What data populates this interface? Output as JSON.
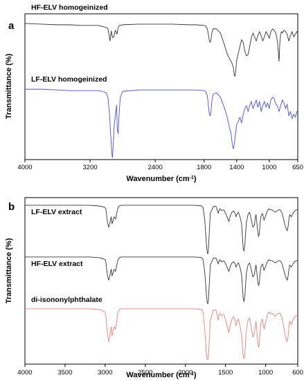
{
  "chart_data": [
    {
      "panel": "a",
      "type": "line",
      "xlabel": "Wavenumber (cm",
      "xlabel_sup": "-1",
      "xlabel_end": ")",
      "ylabel": "Transmittance (%)",
      "xlim": [
        4000,
        650
      ],
      "xticks": [
        "4000",
        "3200",
        "2400",
        "1800",
        "1400",
        "1000",
        "650"
      ],
      "series": [
        {
          "name": "HF-ELV homogeinized",
          "color": "#333333",
          "x": [
            4000,
            3800,
            3600,
            3450,
            3300,
            3100,
            3000,
            2980,
            2955,
            2940,
            2925,
            2910,
            2890,
            2870,
            2855,
            2840,
            2800,
            2600,
            2400,
            2200,
            2000,
            1900,
            1800,
            1780,
            1760,
            1745,
            1735,
            1725,
            1715,
            1705,
            1690,
            1650,
            1600,
            1560,
            1520,
            1480,
            1460,
            1440,
            1430,
            1420,
            1410,
            1400,
            1380,
            1360,
            1340,
            1320,
            1300,
            1280,
            1260,
            1240,
            1220,
            1200,
            1180,
            1160,
            1140,
            1120,
            1100,
            1080,
            1060,
            1040,
            1020,
            1000,
            980,
            960,
            940,
            920,
            900,
            880,
            870,
            860,
            850,
            840,
            820,
            800,
            780,
            760,
            740,
            720,
            700,
            680,
            660,
            650
          ],
          "y": [
            96,
            95,
            94,
            94,
            93,
            93,
            90,
            88,
            70,
            85,
            75,
            76,
            86,
            80,
            90,
            93,
            94,
            95,
            95,
            95,
            94,
            94,
            93,
            92,
            88,
            78,
            70,
            68,
            72,
            82,
            88,
            88,
            82,
            68,
            52,
            42,
            38,
            30,
            20,
            18,
            28,
            42,
            52,
            62,
            72,
            68,
            55,
            48,
            50,
            62,
            75,
            82,
            76,
            70,
            78,
            84,
            78,
            70,
            76,
            84,
            80,
            74,
            84,
            88,
            86,
            82,
            70,
            40,
            68,
            80,
            84,
            82,
            86,
            84,
            80,
            70,
            78,
            84,
            76,
            80,
            84,
            82
          ]
        },
        {
          "name": "LF-ELV homogeinized",
          "color": "#4b4bdb",
          "x": [
            4000,
            3800,
            3600,
            3450,
            3300,
            3100,
            3050,
            3000,
            2980,
            2960,
            2950,
            2940,
            2930,
            2925,
            2915,
            2905,
            2890,
            2875,
            2865,
            2855,
            2845,
            2830,
            2800,
            2600,
            2400,
            2200,
            2000,
            1900,
            1800,
            1780,
            1760,
            1745,
            1735,
            1725,
            1715,
            1705,
            1690,
            1650,
            1600,
            1560,
            1520,
            1490,
            1470,
            1460,
            1450,
            1440,
            1430,
            1420,
            1400,
            1380,
            1360,
            1340,
            1320,
            1300,
            1280,
            1260,
            1240,
            1220,
            1200,
            1180,
            1160,
            1140,
            1120,
            1100,
            1080,
            1060,
            1040,
            1020,
            1000,
            980,
            960,
            940,
            920,
            900,
            880,
            860,
            840,
            820,
            800,
            780,
            760,
            740,
            720,
            700,
            680,
            660,
            650
          ],
          "y": [
            97,
            97,
            96,
            95,
            95,
            95,
            94,
            92,
            85,
            60,
            40,
            20,
            5,
            2,
            20,
            45,
            60,
            75,
            40,
            35,
            60,
            85,
            94,
            96,
            96,
            96,
            96,
            96,
            95,
            94,
            88,
            72,
            62,
            60,
            66,
            80,
            90,
            92,
            86,
            74,
            60,
            44,
            36,
            26,
            18,
            14,
            20,
            30,
            48,
            52,
            58,
            50,
            62,
            70,
            74,
            66,
            74,
            80,
            70,
            76,
            82,
            72,
            80,
            66,
            74,
            80,
            72,
            78,
            70,
            82,
            86,
            84,
            76,
            74,
            66,
            74,
            82,
            78,
            70,
            76,
            60,
            66,
            56,
            62,
            58,
            66,
            64
          ]
        }
      ]
    },
    {
      "panel": "b",
      "type": "line",
      "xlabel": "Wavenumber (cm",
      "xlabel_sup": "-1",
      "xlabel_end": ")",
      "ylabel": "Transmittance (%)",
      "xlim": [
        4000,
        600
      ],
      "xticks": [
        "4000",
        "3500",
        "3000",
        "2500",
        "2000",
        "1500",
        "1000",
        "600"
      ],
      "series": [
        {
          "name": "LF-ELV extract",
          "color": "#333333",
          "x": [
            4000,
            3800,
            3600,
            3400,
            3200,
            3100,
            3050,
            3000,
            2990,
            2980,
            2970,
            2960,
            2955,
            2945,
            2935,
            2925,
            2915,
            2905,
            2890,
            2880,
            2870,
            2860,
            2850,
            2840,
            2820,
            2800,
            2600,
            2400,
            2200,
            2000,
            1900,
            1800,
            1780,
            1760,
            1740,
            1730,
            1722,
            1715,
            1705,
            1690,
            1650,
            1620,
            1600,
            1590,
            1580,
            1570,
            1550,
            1520,
            1480,
            1470,
            1460,
            1450,
            1440,
            1420,
            1400,
            1380,
            1370,
            1360,
            1340,
            1320,
            1300,
            1290,
            1280,
            1270,
            1260,
            1250,
            1240,
            1220,
            1200,
            1180,
            1160,
            1140,
            1130,
            1120,
            1100,
            1090,
            1080,
            1070,
            1060,
            1040,
            1020,
            1000,
            980,
            960,
            940,
            920,
            900,
            880,
            860,
            840,
            820,
            800,
            780,
            760,
            740,
            730,
            720,
            710,
            700,
            680,
            660,
            640,
            620,
            600
          ],
          "y": [
            94,
            94,
            94,
            94,
            94,
            93,
            92,
            90,
            86,
            74,
            64,
            58,
            56,
            62,
            68,
            74,
            62,
            66,
            74,
            72,
            70,
            78,
            84,
            90,
            93,
            94,
            94,
            94,
            94,
            94,
            94,
            93,
            90,
            70,
            30,
            15,
            10,
            15,
            40,
            80,
            92,
            92,
            84,
            80,
            86,
            88,
            85,
            86,
            74,
            70,
            66,
            70,
            76,
            82,
            84,
            80,
            74,
            78,
            82,
            74,
            62,
            40,
            20,
            15,
            25,
            45,
            65,
            78,
            82,
            70,
            56,
            60,
            72,
            78,
            50,
            40,
            44,
            62,
            74,
            80,
            68,
            76,
            84,
            88,
            86,
            86,
            84,
            82,
            84,
            86,
            86,
            82,
            72,
            60,
            52,
            50,
            58,
            70,
            78,
            74,
            80,
            84,
            86,
            86
          ]
        },
        {
          "name": "HF-ELV extract",
          "color": "#333333",
          "x": [
            4000,
            3800,
            3600,
            3400,
            3200,
            3100,
            3050,
            3000,
            2990,
            2980,
            2970,
            2960,
            2955,
            2945,
            2935,
            2925,
            2915,
            2905,
            2890,
            2880,
            2870,
            2860,
            2850,
            2840,
            2820,
            2800,
            2600,
            2400,
            2200,
            2000,
            1900,
            1800,
            1780,
            1760,
            1740,
            1730,
            1722,
            1715,
            1705,
            1690,
            1650,
            1620,
            1600,
            1590,
            1580,
            1570,
            1550,
            1520,
            1480,
            1470,
            1460,
            1450,
            1440,
            1420,
            1400,
            1380,
            1370,
            1360,
            1340,
            1320,
            1300,
            1290,
            1280,
            1270,
            1260,
            1250,
            1240,
            1220,
            1200,
            1180,
            1160,
            1140,
            1130,
            1120,
            1100,
            1090,
            1080,
            1070,
            1060,
            1040,
            1020,
            1000,
            980,
            960,
            940,
            920,
            900,
            880,
            860,
            840,
            820,
            800,
            780,
            760,
            740,
            730,
            720,
            710,
            700,
            680,
            660,
            640,
            620,
            600
          ],
          "y": [
            95,
            95,
            95,
            95,
            95,
            94,
            93,
            90,
            84,
            70,
            60,
            54,
            52,
            58,
            66,
            72,
            60,
            64,
            72,
            70,
            68,
            76,
            84,
            90,
            94,
            95,
            95,
            95,
            95,
            95,
            95,
            94,
            90,
            68,
            28,
            12,
            8,
            12,
            38,
            80,
            93,
            93,
            86,
            82,
            88,
            90,
            86,
            88,
            76,
            72,
            68,
            72,
            78,
            84,
            86,
            82,
            76,
            80,
            84,
            76,
            62,
            40,
            18,
            12,
            22,
            44,
            66,
            80,
            84,
            72,
            58,
            62,
            74,
            80,
            52,
            42,
            46,
            64,
            76,
            82,
            70,
            78,
            86,
            90,
            88,
            88,
            86,
            84,
            86,
            88,
            88,
            84,
            74,
            62,
            54,
            52,
            60,
            72,
            80,
            76,
            82,
            86,
            88,
            88
          ]
        },
        {
          "name": "di-isononylphthalate",
          "color": "#e8807a",
          "x": [
            4000,
            3800,
            3600,
            3400,
            3200,
            3100,
            3050,
            3000,
            2990,
            2980,
            2970,
            2960,
            2955,
            2945,
            2935,
            2925,
            2915,
            2905,
            2890,
            2880,
            2870,
            2860,
            2850,
            2840,
            2820,
            2800,
            2600,
            2400,
            2200,
            2000,
            1900,
            1800,
            1780,
            1760,
            1740,
            1730,
            1722,
            1715,
            1705,
            1690,
            1650,
            1620,
            1600,
            1590,
            1580,
            1570,
            1550,
            1520,
            1480,
            1470,
            1460,
            1450,
            1440,
            1420,
            1400,
            1380,
            1370,
            1360,
            1340,
            1320,
            1300,
            1290,
            1280,
            1270,
            1260,
            1250,
            1240,
            1220,
            1200,
            1180,
            1160,
            1140,
            1130,
            1120,
            1100,
            1090,
            1080,
            1070,
            1060,
            1040,
            1020,
            1000,
            980,
            960,
            940,
            920,
            900,
            880,
            860,
            840,
            820,
            800,
            780,
            760,
            740,
            730,
            720,
            710,
            700,
            680,
            660,
            640,
            620,
            600
          ],
          "y": [
            94,
            94,
            94,
            94,
            94,
            93,
            92,
            88,
            80,
            62,
            48,
            40,
            36,
            44,
            54,
            62,
            46,
            52,
            62,
            60,
            58,
            68,
            80,
            88,
            93,
            94,
            94,
            94,
            94,
            94,
            94,
            93,
            88,
            60,
            18,
            6,
            4,
            8,
            30,
            74,
            92,
            92,
            80,
            74,
            84,
            86,
            82,
            84,
            64,
            58,
            52,
            58,
            66,
            76,
            80,
            74,
            64,
            70,
            76,
            64,
            48,
            28,
            10,
            6,
            14,
            36,
            58,
            74,
            78,
            62,
            44,
            50,
            64,
            72,
            38,
            26,
            30,
            52,
            68,
            76,
            58,
            70,
            82,
            88,
            86,
            86,
            84,
            80,
            84,
            86,
            86,
            80,
            66,
            50,
            38,
            36,
            46,
            62,
            72,
            66,
            74,
            80,
            82,
            82
          ]
        }
      ]
    }
  ]
}
